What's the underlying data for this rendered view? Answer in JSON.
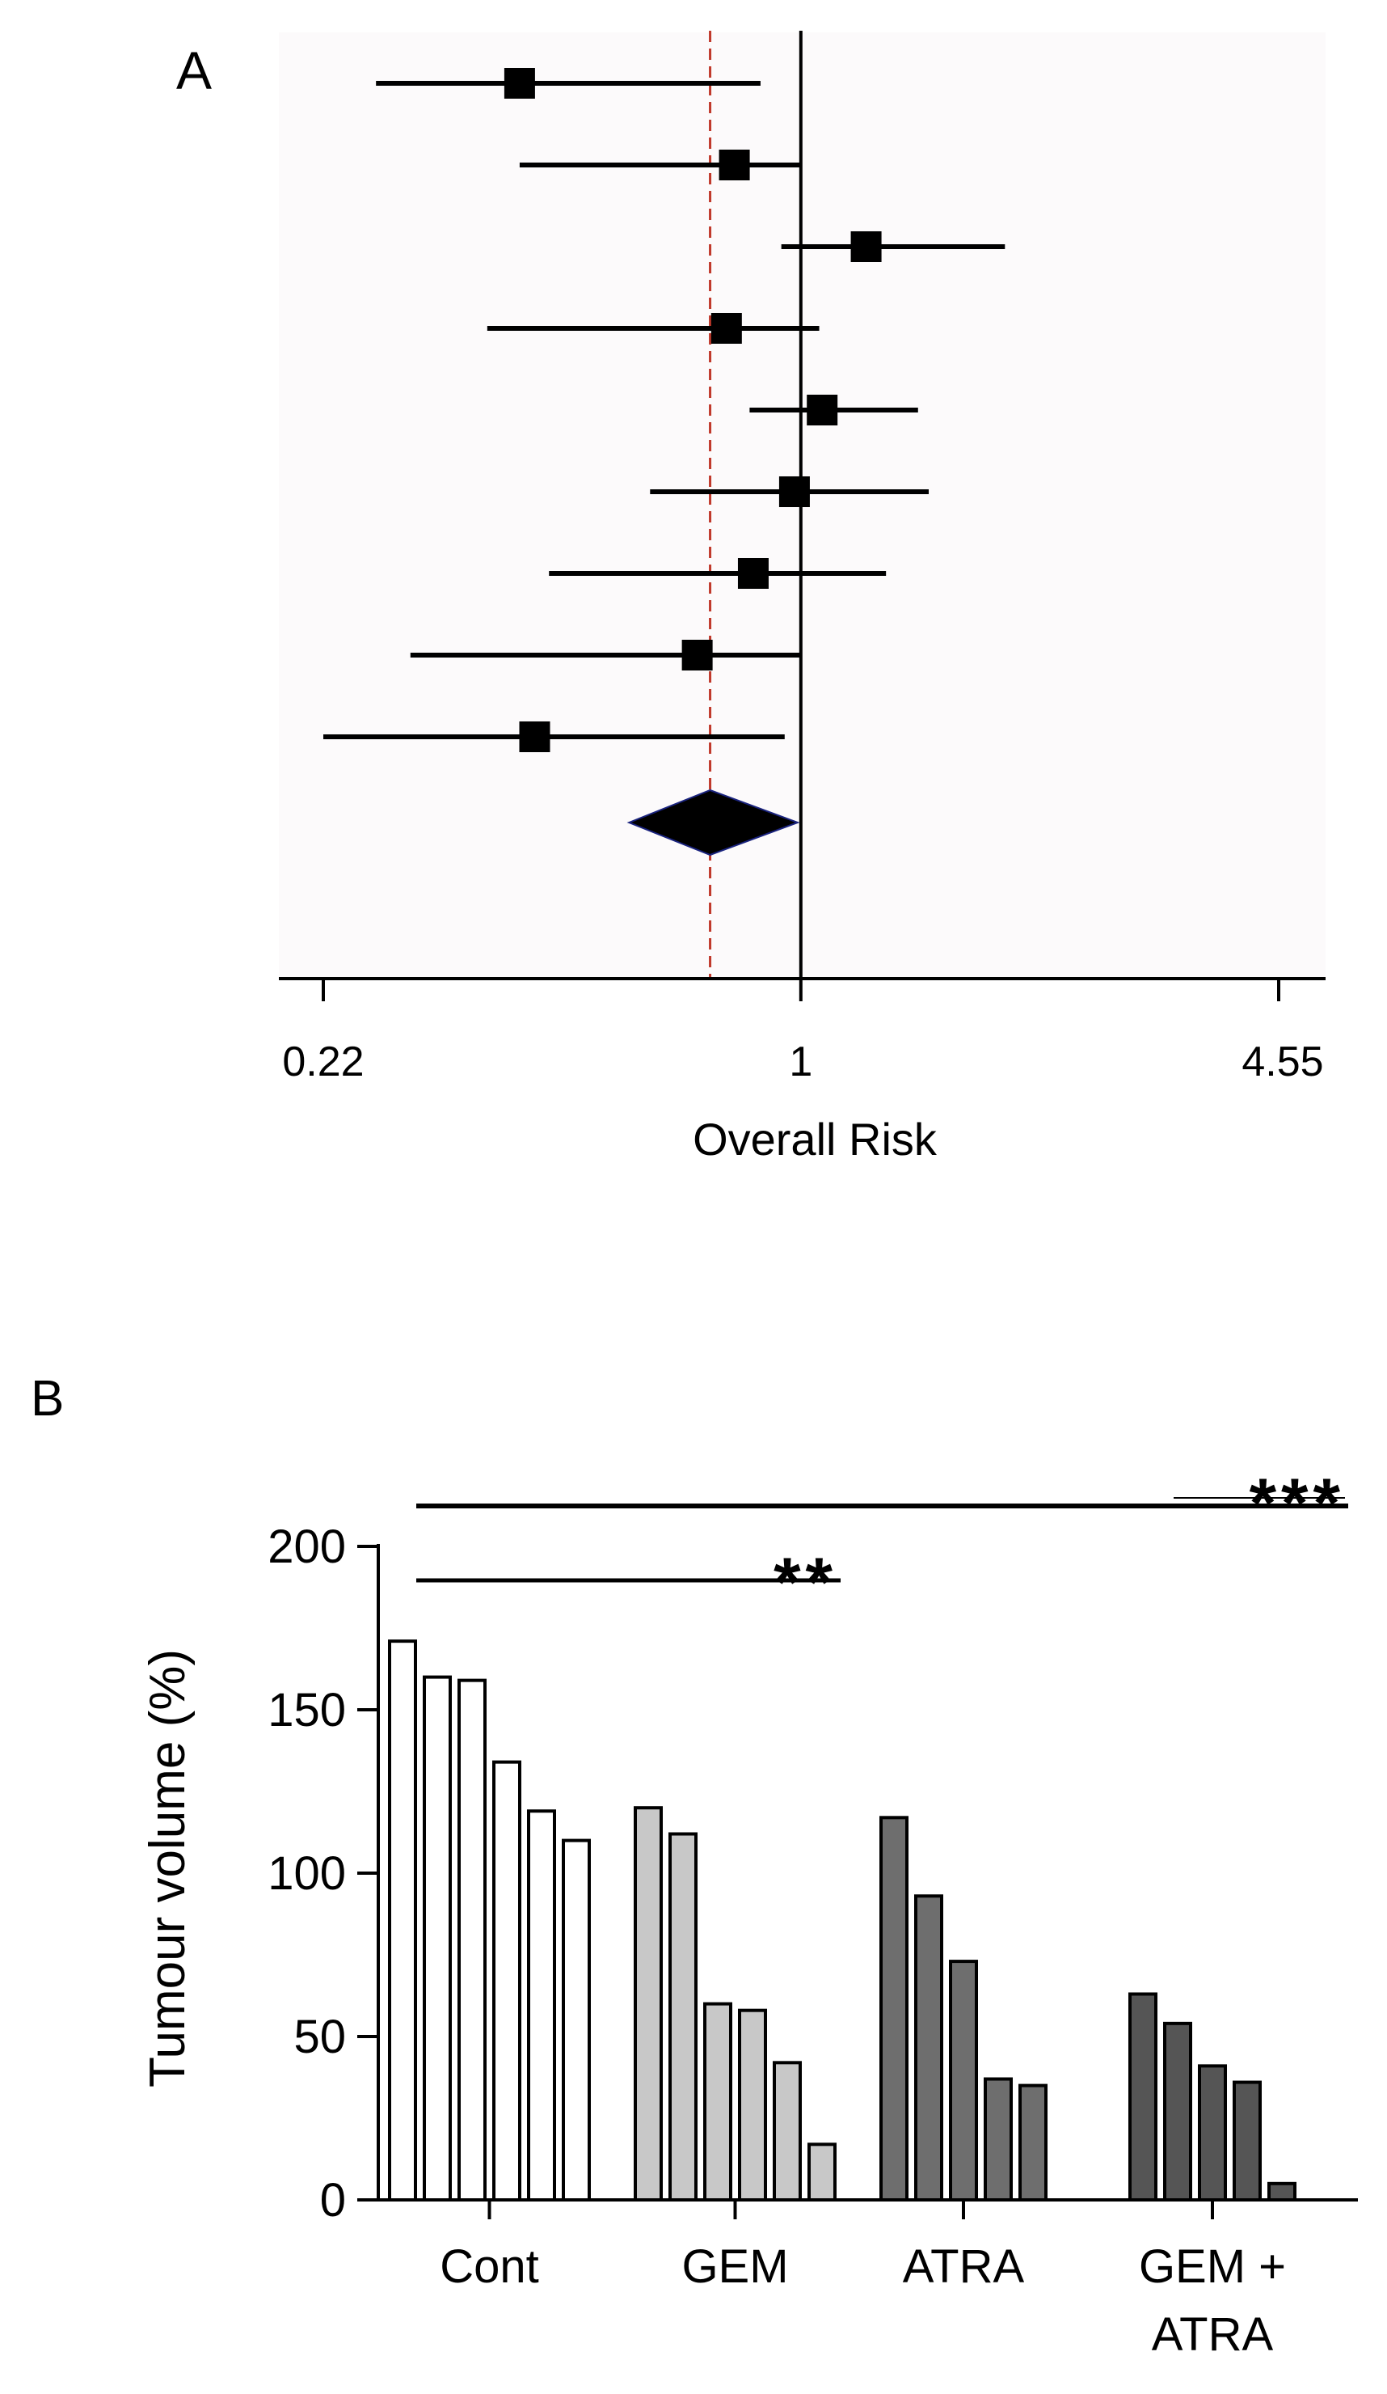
{
  "chart_data": [
    {
      "type": "scatter",
      "panel_label": "A",
      "xlabel": "Overall Risk",
      "x_scale": "log",
      "xlim": [
        0.22,
        4.55
      ],
      "x_ticks": [
        "0.22",
        "1",
        "4.55"
      ],
      "reference_line": 1,
      "pooled_line": 0.75,
      "studies": [
        {
          "estimate": 0.41,
          "lower": 0.26,
          "upper": 0.88
        },
        {
          "estimate": 0.81,
          "lower": 0.41,
          "upper": 1.0
        },
        {
          "estimate": 1.23,
          "lower": 0.94,
          "upper": 1.91
        },
        {
          "estimate": 0.79,
          "lower": 0.37,
          "upper": 1.06
        },
        {
          "estimate": 1.07,
          "lower": 0.85,
          "upper": 1.45
        },
        {
          "estimate": 0.98,
          "lower": 0.62,
          "upper": 1.5
        },
        {
          "estimate": 0.86,
          "lower": 0.45,
          "upper": 1.31
        },
        {
          "estimate": 0.72,
          "lower": 0.29,
          "upper": 1.0
        },
        {
          "estimate": 0.43,
          "lower": 0.22,
          "upper": 0.95
        }
      ],
      "pooled": {
        "estimate": 0.75,
        "lower": 0.58,
        "upper": 0.99
      }
    },
    {
      "type": "bar",
      "panel_label": "B",
      "ylabel": "Tumour volume (%)",
      "ylim": [
        0,
        200
      ],
      "y_ticks": [
        0,
        50,
        100,
        150,
        200
      ],
      "groups": [
        {
          "name": "Cont",
          "color": "#ffffff",
          "values": [
            171,
            160,
            159,
            134,
            119,
            110
          ]
        },
        {
          "name": "GEM",
          "color": "#c8c8c8",
          "values": [
            120,
            112,
            60,
            58,
            42,
            17
          ]
        },
        {
          "name": "ATRA",
          "color": "#6e6e6e",
          "values": [
            117,
            93,
            73,
            37,
            35
          ]
        },
        {
          "name": "GEM + ATRA",
          "name_lines": [
            "GEM +",
            "ATRA"
          ],
          "color": "#555555",
          "values": [
            63,
            54,
            41,
            36,
            5
          ]
        }
      ],
      "significance": [
        {
          "label": "**",
          "from_group": 0,
          "to_group": 1
        },
        {
          "label": "***",
          "from_group": 0,
          "to_group": 3
        }
      ]
    }
  ]
}
